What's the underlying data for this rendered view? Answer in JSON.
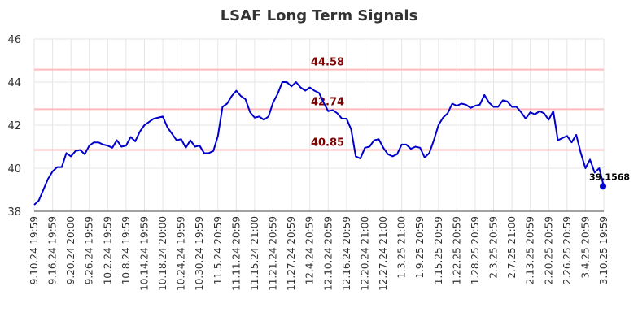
{
  "chart_data": {
    "type": "line",
    "title": "LSAF Long Term Signals",
    "xlabel": "",
    "ylabel": "",
    "ylim": [
      38,
      46
    ],
    "y_ticks": [
      38,
      40,
      42,
      44,
      46
    ],
    "grid": true,
    "x_tick_labels": [
      "9.10.24 19:59",
      "9.16.24 19:59",
      "9.20.24 20:00",
      "9.26.24 19:59",
      "10.2.24 19:59",
      "10.8.24 19:59",
      "10.14.24 19:59",
      "10.18.24 20:00",
      "10.24.24 19:59",
      "10.30.24 19:59",
      "11.5.24 20:59",
      "11.11.24 20:59",
      "11.15.24 21:00",
      "11.21.24 20:59",
      "11.27.24 20:59",
      "12.4.24 20:59",
      "12.10.24 20:59",
      "12.16.24 20:59",
      "12.20.24 21:00",
      "12.27.24 21:00",
      "1.3.25 21:00",
      "1.9.25 20:59",
      "1.15.25 20:59",
      "1.22.25 20:59",
      "1.28.25 20:59",
      "2.3.25 20:59",
      "2.7.25 21:00",
      "2.13.25 20:59",
      "2.20.25 20:59",
      "2.26.25 20:59",
      "3.4.25 20:59",
      "3.10.25 19:59"
    ],
    "signal_lines": [
      {
        "value": 44.58,
        "label": "44.58"
      },
      {
        "value": 42.74,
        "label": "42.74"
      },
      {
        "value": 40.85,
        "label": "40.85"
      }
    ],
    "series": [
      {
        "color": "#0000cc",
        "values": [
          38.3,
          38.5,
          39.0,
          39.5,
          39.85,
          40.05,
          40.05,
          40.7,
          40.55,
          40.8,
          40.85,
          40.65,
          41.05,
          41.2,
          41.2,
          41.1,
          41.05,
          40.95,
          41.3,
          41.0,
          41.05,
          41.45,
          41.25,
          41.7,
          42.0,
          42.15,
          42.3,
          42.35,
          42.4,
          41.9,
          41.6,
          41.3,
          41.35,
          40.95,
          41.3,
          41.0,
          41.05,
          40.7,
          40.7,
          40.8,
          41.5,
          42.85,
          43.0,
          43.35,
          43.6,
          43.35,
          43.2,
          42.6,
          42.35,
          42.4,
          42.25,
          42.4,
          43.05,
          43.45,
          44.0,
          44.0,
          43.8,
          44.0,
          43.75,
          43.6,
          43.75,
          43.6,
          43.5,
          43.05,
          42.65,
          42.7,
          42.55,
          42.3,
          42.3,
          41.8,
          40.55,
          40.45,
          40.95,
          41.0,
          41.3,
          41.35,
          40.95,
          40.65,
          40.55,
          40.65,
          41.1,
          41.1,
          40.9,
          41.0,
          40.95,
          40.5,
          40.7,
          41.3,
          42.0,
          42.35,
          42.55,
          43.0,
          42.9,
          43.0,
          42.95,
          42.8,
          42.9,
          42.95,
          43.4,
          43.05,
          42.85,
          42.85,
          43.15,
          43.1,
          42.85,
          42.85,
          42.6,
          42.3,
          42.6,
          42.5,
          42.65,
          42.55,
          42.25,
          42.65,
          41.3,
          41.4,
          41.5,
          41.2,
          41.55,
          40.7,
          40.0,
          40.4,
          39.8,
          40.0,
          39.1568
        ]
      }
    ],
    "last_value_label": "39.1568"
  },
  "colors": {
    "line": "#0000cc",
    "signal_line": "#ffbbbb",
    "signal_label": "#800000",
    "grid": "#e6e6e6"
  }
}
